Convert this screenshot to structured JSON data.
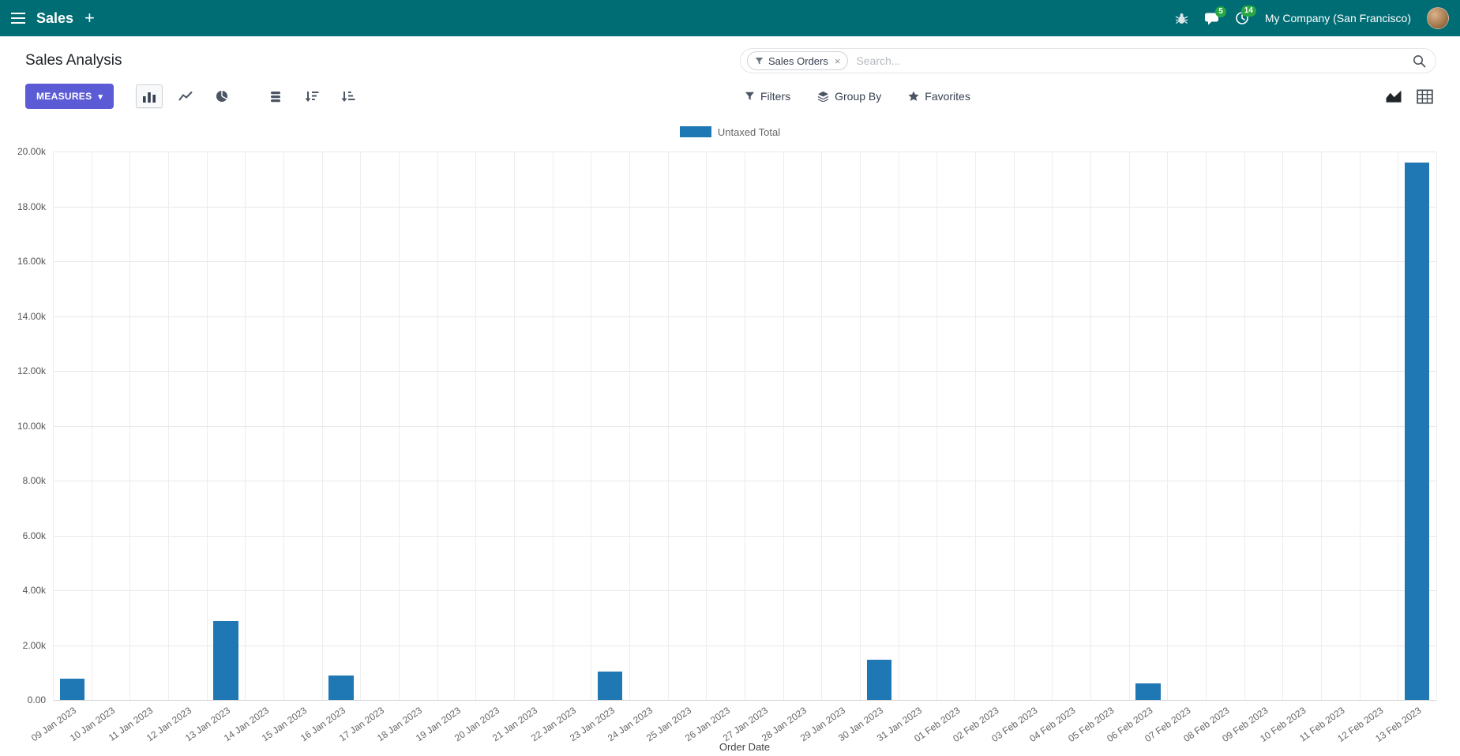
{
  "navbar": {
    "app_name": "Sales",
    "plus_glyph": "+",
    "messages_badge": "5",
    "activities_badge": "14",
    "company": "My Company (San Francisco)"
  },
  "control_panel": {
    "title": "Sales Analysis",
    "measures_button": "MEASURES",
    "measures_caret": "▾",
    "filters": "Filters",
    "group_by": "Group By",
    "favorites": "Favorites",
    "search": {
      "facet_label": "Sales Orders",
      "facet_remove_glyph": "×",
      "placeholder": "Search..."
    }
  },
  "chart_data": {
    "type": "bar",
    "legend_position": "top",
    "grid": true,
    "series": [
      {
        "name": "Untaxed Total",
        "color": "#1f77b4",
        "values": [
          780,
          0,
          0,
          0,
          2880,
          0,
          0,
          880,
          0,
          0,
          0,
          0,
          0,
          0,
          1050,
          0,
          0,
          0,
          0,
          0,
          0,
          1460,
          0,
          0,
          0,
          0,
          0,
          0,
          600,
          0,
          0,
          0,
          0,
          0,
          0,
          19600
        ]
      }
    ],
    "categories": [
      "09 Jan 2023",
      "10 Jan 2023",
      "11 Jan 2023",
      "12 Jan 2023",
      "13 Jan 2023",
      "14 Jan 2023",
      "15 Jan 2023",
      "16 Jan 2023",
      "17 Jan 2023",
      "18 Jan 2023",
      "19 Jan 2023",
      "20 Jan 2023",
      "21 Jan 2023",
      "22 Jan 2023",
      "23 Jan 2023",
      "24 Jan 2023",
      "25 Jan 2023",
      "26 Jan 2023",
      "27 Jan 2023",
      "28 Jan 2023",
      "29 Jan 2023",
      "30 Jan 2023",
      "31 Jan 2023",
      "01 Feb 2023",
      "02 Feb 2023",
      "03 Feb 2023",
      "04 Feb 2023",
      "05 Feb 2023",
      "06 Feb 2023",
      "07 Feb 2023",
      "08 Feb 2023",
      "09 Feb 2023",
      "10 Feb 2023",
      "11 Feb 2023",
      "12 Feb 2023",
      "13 Feb 2023"
    ],
    "xlabel": "Order Date",
    "ylabel": "",
    "ylim": [
      0,
      20000
    ],
    "ytick_step": 2000,
    "ytick_labels": [
      "0.00",
      "2.00k",
      "4.00k",
      "6.00k",
      "8.00k",
      "10.00k",
      "12.00k",
      "14.00k",
      "16.00k",
      "18.00k",
      "20.00k"
    ]
  },
  "colors": {
    "navbar_bg": "#006d75",
    "primary_button": "#5b5bd6",
    "badge_green": "#28a745",
    "bar_blue": "#1f77b4"
  }
}
